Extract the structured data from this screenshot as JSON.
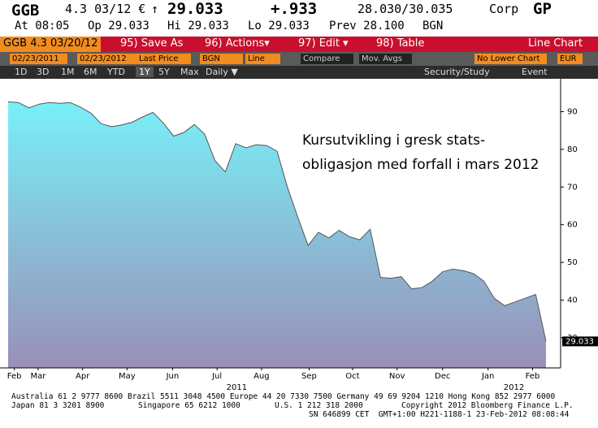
{
  "header": {
    "ticker": "GGB",
    "coupon": "4.3 03/12 €",
    "arrow": "↑",
    "last": "29.033",
    "change": "+.933",
    "bid_ask": "28.030/30.035",
    "sector": "Corp",
    "function": "GP",
    "time": "At 08:05",
    "open": "Op 29.033",
    "high": "Hi 29.033",
    "low": "Lo 29.033",
    "prev": "Prev 28.100",
    "source": "BGN"
  },
  "menu": {
    "security": "GGB 4.3 03/20/12",
    "items": [
      "95) Save As",
      "96) Actions▾",
      "97) Edit ▾",
      "98) Table"
    ],
    "view": "Line Chart"
  },
  "toolbar": {
    "start": "02/23/2011",
    "end": "02/23/2012",
    "field": "Last Price",
    "source": "BGN",
    "style": "Line",
    "compare": "Compare",
    "studies": "Mov. Avgs",
    "lower": "No Lower Chart",
    "currency": "EUR"
  },
  "periods": {
    "buttons": [
      "1D",
      "3D",
      "1M",
      "6M",
      "YTD",
      "1Y",
      "5Y",
      "Max"
    ],
    "frequency": "Daily ▼",
    "security_study": "Security/Study",
    "event": "Event"
  },
  "chart_data": {
    "type": "area",
    "annotation": [
      "Kursutvikling i gresk stats-",
      "obligasjon med forfall i mars 2012"
    ],
    "values": [
      92.6,
      92.4,
      91.0,
      92.0,
      92.4,
      92.2,
      92.4,
      91.2,
      89.6,
      86.8,
      86.0,
      86.5,
      87.2,
      88.6,
      89.8,
      87.0,
      83.5,
      84.5,
      86.6,
      84.0,
      77.0,
      74.0,
      81.5,
      80.4,
      81.2,
      81.0,
      79.5,
      70.0,
      62.0,
      54.5,
      58.0,
      56.5,
      58.5,
      56.8,
      56.0,
      58.8,
      46.0,
      45.8,
      46.2,
      43.0,
      43.3,
      45.0,
      47.5,
      48.2,
      47.8,
      47.0,
      45.0,
      40.5,
      38.5,
      39.5,
      40.5,
      41.5,
      29.033
    ],
    "ylim": [
      22,
      97
    ],
    "yticks": [
      30,
      40,
      50,
      60,
      70,
      80,
      90
    ],
    "xticks": [
      {
        "value": 0.6,
        "label": "Feb"
      },
      {
        "value": 2.9,
        "label": "Mar"
      },
      {
        "value": 7.2,
        "label": "Apr"
      },
      {
        "value": 11.5,
        "label": "May"
      },
      {
        "value": 15.9,
        "label": "Jun"
      },
      {
        "value": 20.2,
        "label": "Jul"
      },
      {
        "value": 24.5,
        "label": "Aug"
      },
      {
        "value": 29.1,
        "label": "Sep"
      },
      {
        "value": 33.3,
        "label": "Oct"
      },
      {
        "value": 37.6,
        "label": "Nov"
      },
      {
        "value": 42.0,
        "label": "Dec"
      },
      {
        "value": 46.4,
        "label": "Jan"
      },
      {
        "value": 50.7,
        "label": "Feb"
      }
    ],
    "years": [
      {
        "value": 22.1,
        "label": "2011"
      },
      {
        "value": 48.9,
        "label": "2012"
      }
    ]
  },
  "footer": {
    "line1": "Australia 61 2 9777 8600 Brazil 5511 3048 4500 Europe 44 20 7330 7500 Germany 49 69 9204 1210 Hong Kong 852 2977 6000",
    "line2": [
      "Japan 81 3 3201 8900",
      "Singapore 65 6212 1000",
      "U.S. 1 212 318 2000",
      "Copyright 2012 Bloomberg Finance L.P."
    ],
    "line3": "SN 646899 CET  GMT+1:00 H221-1188-1 23-Feb-2012 08:08:44"
  }
}
